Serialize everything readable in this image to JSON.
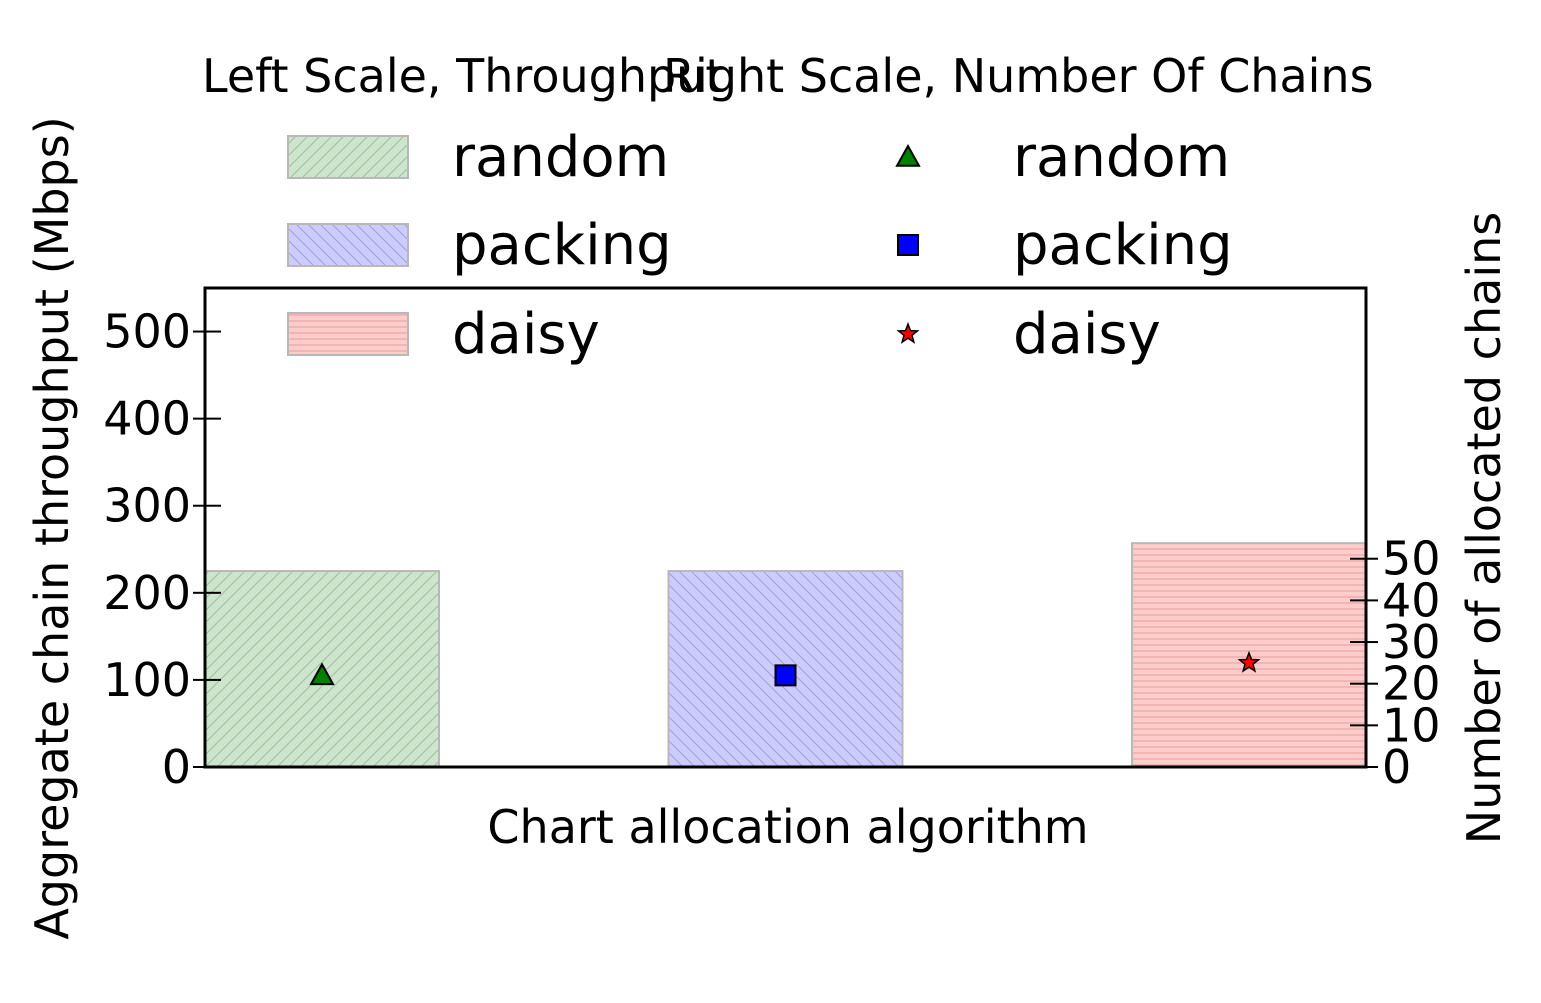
{
  "chart_data": {
    "type": "bar",
    "categories": [
      "random",
      "packing",
      "daisy"
    ],
    "xlabel": "Chart allocation algorithm",
    "ylabel": "Aggregate chain throughput (Mbps)",
    "ylabel_right": "Number of allocated chains",
    "ylim": [
      0,
      550
    ],
    "ylim_right": [
      0,
      115
    ],
    "yticks": [
      "0",
      "100",
      "200",
      "300",
      "400",
      "500"
    ],
    "yticks_right": [
      "0",
      "10",
      "20",
      "30",
      "40",
      "50"
    ],
    "grid": false,
    "series": [
      {
        "name": "random",
        "axis": "left",
        "kind": "bar",
        "values": [
          225,
          225,
          257
        ],
        "colors": [
          "#cce5cc",
          "#ccccff",
          "#ffcccc"
        ],
        "hatches": [
          "diagonal-up",
          "diagonal-down",
          "horizontal"
        ]
      },
      {
        "name": "chains",
        "axis": "right",
        "kind": "marker",
        "values": [
          22,
          22,
          25
        ],
        "markers": [
          "triangle",
          "square",
          "star"
        ],
        "colors": [
          "#008000",
          "#0000ff",
          "#ff0000"
        ]
      }
    ],
    "legend_left": {
      "title": "Left Scale, Throughput",
      "entries": [
        "random",
        "packing",
        "daisy"
      ],
      "placement": "top-left"
    },
    "legend_right": {
      "title": "Right Scale, Number Of Chains",
      "entries": [
        "random",
        "packing",
        "daisy"
      ],
      "placement": "top-right"
    }
  }
}
